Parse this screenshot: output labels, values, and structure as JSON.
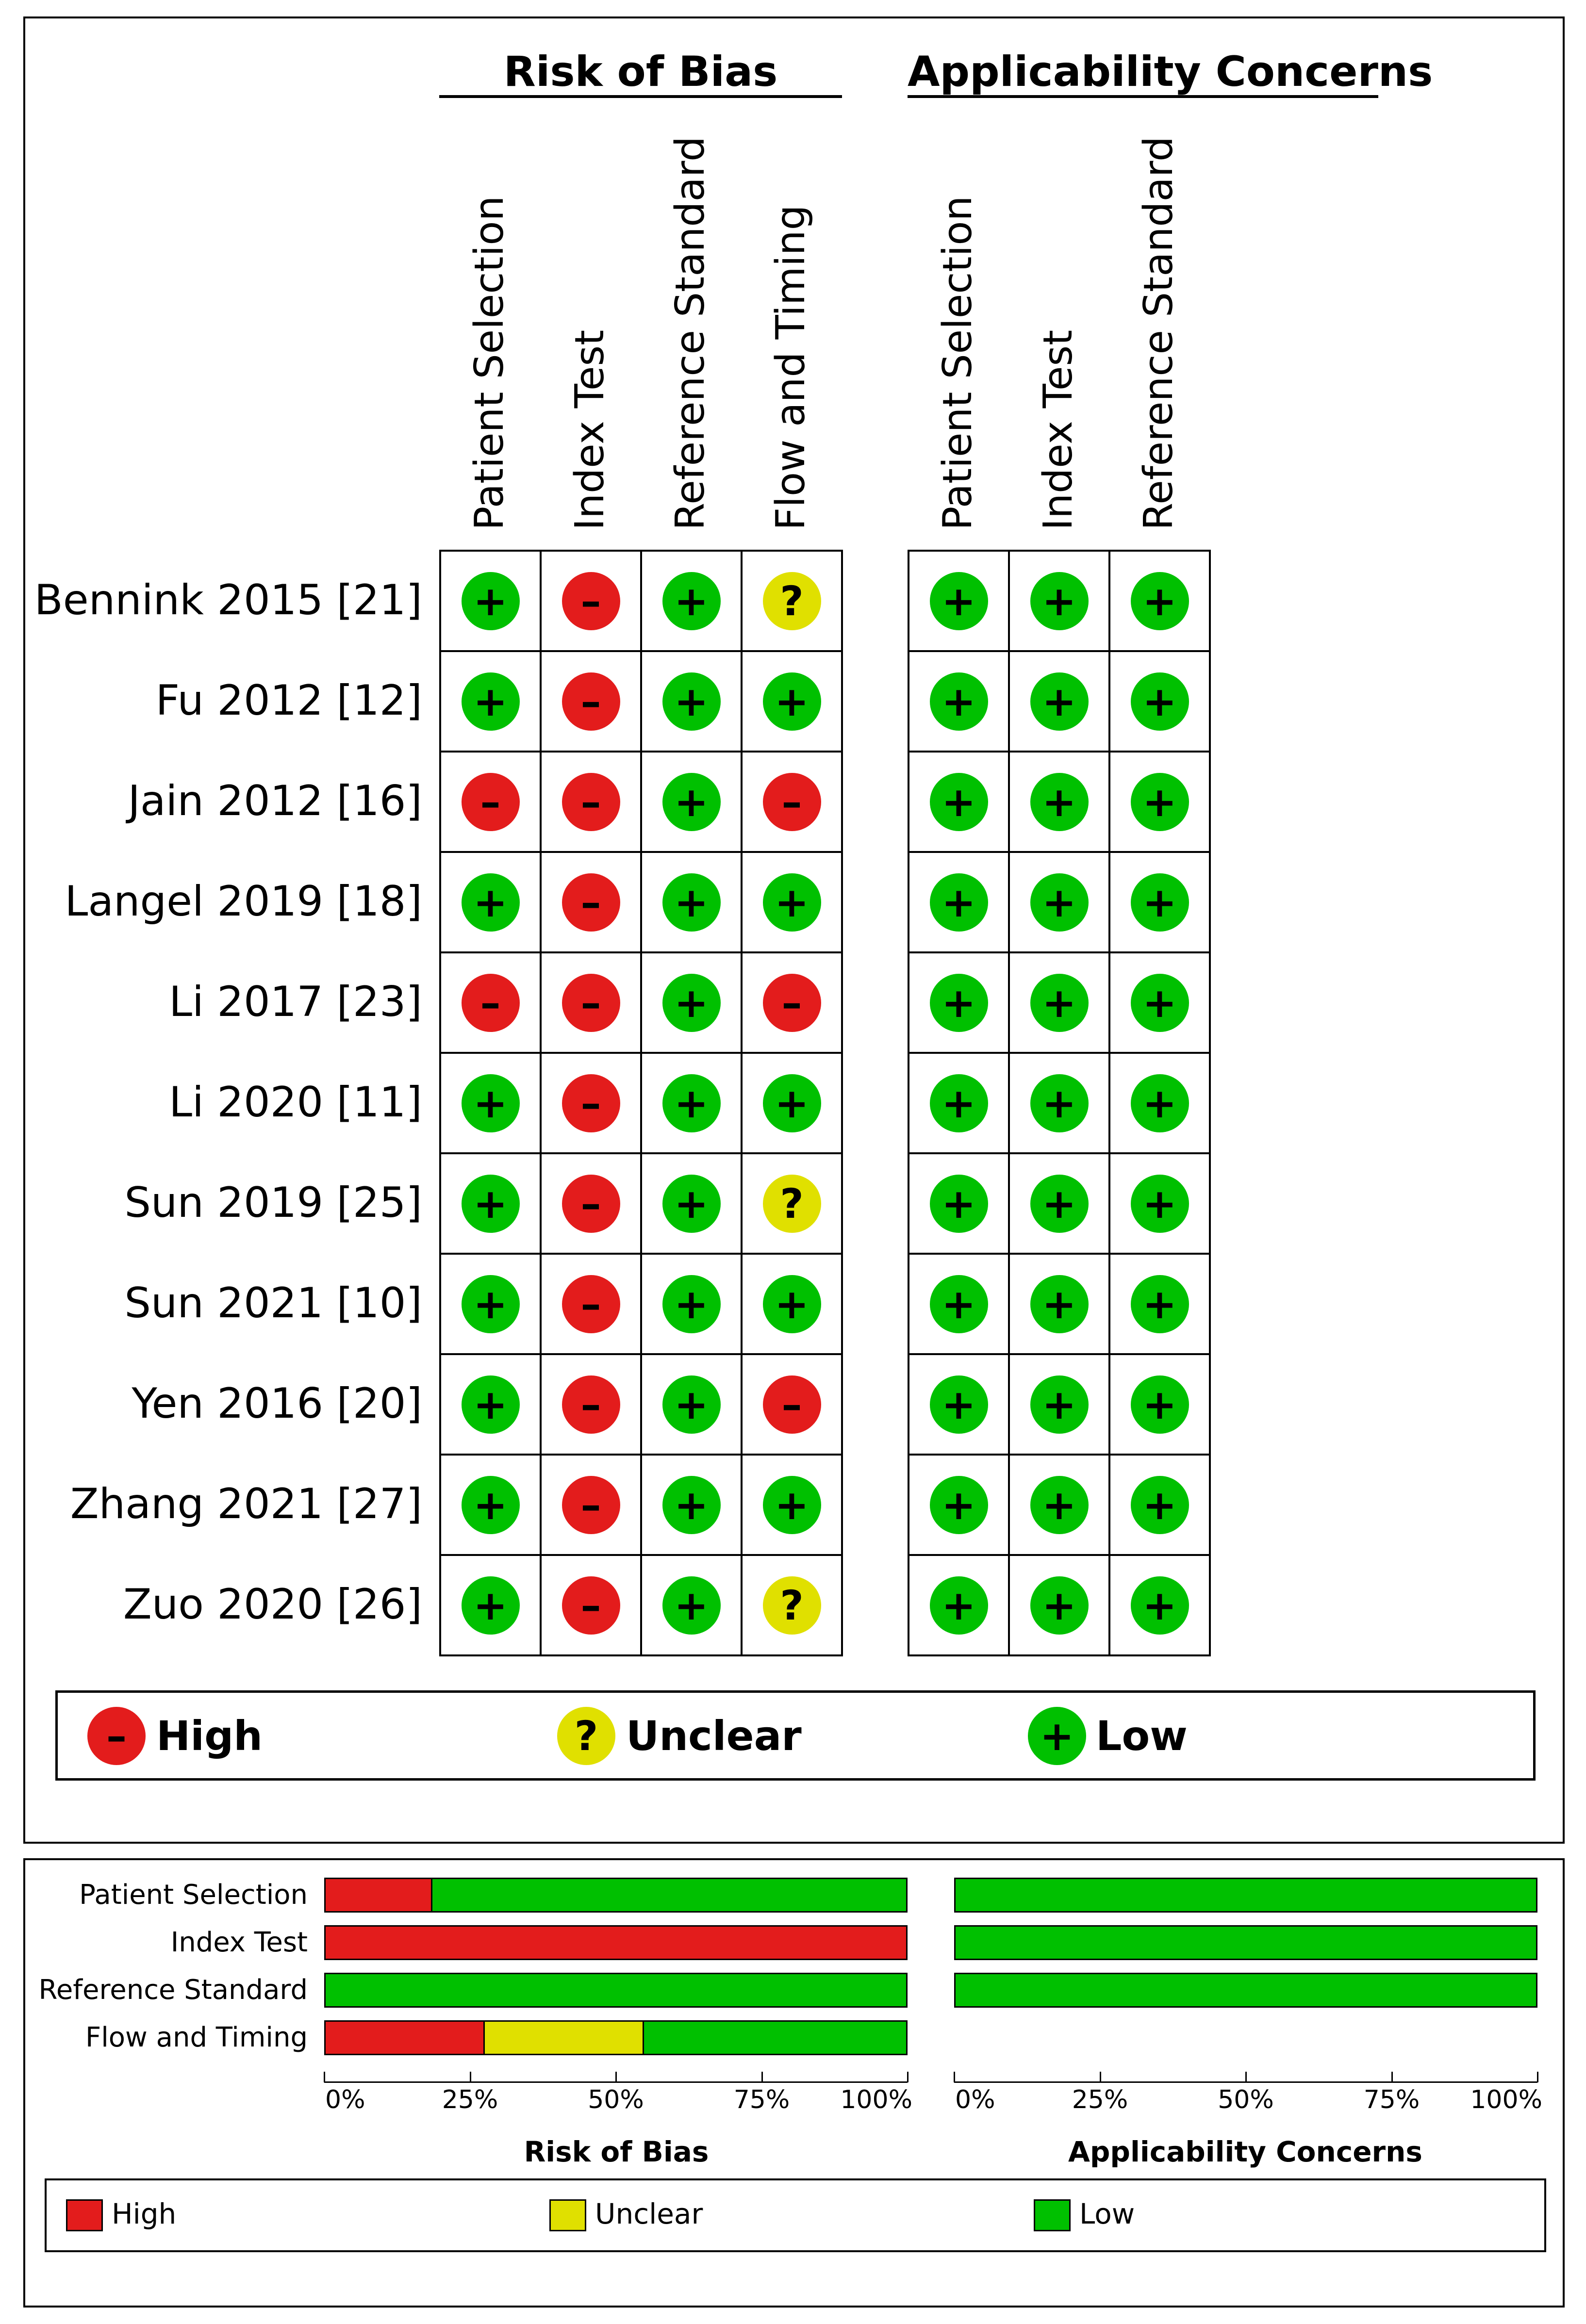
{
  "chart_data": [
    {
      "type": "table",
      "groups": [
        {
          "title": "Risk of Bias",
          "columns": [
            "Patient Selection",
            "Index Test",
            "Reference Standard",
            "Flow and Timing"
          ]
        },
        {
          "title": "Applicability Concerns",
          "columns": [
            "Patient Selection",
            "Index Test",
            "Reference Standard"
          ]
        }
      ],
      "studies": [
        {
          "label": "Bennink 2015 [21]",
          "risk_of_bias": [
            "low",
            "high",
            "low",
            "unclear"
          ],
          "applicability": [
            "low",
            "low",
            "low"
          ]
        },
        {
          "label": "Fu 2012 [12]",
          "risk_of_bias": [
            "low",
            "high",
            "low",
            "low"
          ],
          "applicability": [
            "low",
            "low",
            "low"
          ]
        },
        {
          "label": "Jain 2012 [16]",
          "risk_of_bias": [
            "high",
            "high",
            "low",
            "high"
          ],
          "applicability": [
            "low",
            "low",
            "low"
          ]
        },
        {
          "label": "Langel 2019 [18]",
          "risk_of_bias": [
            "low",
            "high",
            "low",
            "low"
          ],
          "applicability": [
            "low",
            "low",
            "low"
          ]
        },
        {
          "label": "Li 2017 [23]",
          "risk_of_bias": [
            "high",
            "high",
            "low",
            "high"
          ],
          "applicability": [
            "low",
            "low",
            "low"
          ]
        },
        {
          "label": "Li 2020 [11]",
          "risk_of_bias": [
            "low",
            "high",
            "low",
            "low"
          ],
          "applicability": [
            "low",
            "low",
            "low"
          ]
        },
        {
          "label": "Sun 2019 [25]",
          "risk_of_bias": [
            "low",
            "high",
            "low",
            "unclear"
          ],
          "applicability": [
            "low",
            "low",
            "low"
          ]
        },
        {
          "label": "Sun 2021 [10]",
          "risk_of_bias": [
            "low",
            "high",
            "low",
            "low"
          ],
          "applicability": [
            "low",
            "low",
            "low"
          ]
        },
        {
          "label": "Yen 2016 [20]",
          "risk_of_bias": [
            "low",
            "high",
            "low",
            "high"
          ],
          "applicability": [
            "low",
            "low",
            "low"
          ]
        },
        {
          "label": "Zhang 2021 [27]",
          "risk_of_bias": [
            "low",
            "high",
            "low",
            "low"
          ],
          "applicability": [
            "low",
            "low",
            "low"
          ]
        },
        {
          "label": "Zuo 2020 [26]",
          "risk_of_bias": [
            "low",
            "high",
            "low",
            "unclear"
          ],
          "applicability": [
            "low",
            "low",
            "low"
          ]
        }
      ],
      "legend": [
        {
          "key": "high",
          "label": "High",
          "symbol": "–"
        },
        {
          "key": "unclear",
          "label": "Unclear",
          "symbol": "?"
        },
        {
          "key": "low",
          "label": "Low",
          "symbol": "+"
        }
      ]
    },
    {
      "type": "bar",
      "stacked": true,
      "orientation": "horizontal",
      "categories": [
        "Patient Selection",
        "Index Test",
        "Reference Standard",
        "Flow and Timing"
      ],
      "panels": [
        {
          "title": "Risk of Bias",
          "series": [
            {
              "name": "High",
              "values": [
                18.2,
                100,
                0,
                27.3
              ]
            },
            {
              "name": "Unclear",
              "values": [
                0,
                0,
                0,
                27.3
              ]
            },
            {
              "name": "Low",
              "values": [
                81.8,
                0,
                100,
                45.4
              ]
            }
          ]
        },
        {
          "title": "Applicability Concerns",
          "series": [
            {
              "name": "High",
              "values": [
                0,
                0,
                0
              ]
            },
            {
              "name": "Unclear",
              "values": [
                0,
                0,
                0
              ]
            },
            {
              "name": "Low",
              "values": [
                100,
                100,
                100
              ]
            }
          ]
        }
      ],
      "xlim": [
        0,
        100
      ],
      "xticks": [
        "0%",
        "25%",
        "50%",
        "75%",
        "100%"
      ],
      "legend": [
        "High",
        "Unclear",
        "Low"
      ]
    }
  ],
  "colors": {
    "high": "#e31c1c",
    "unclear": "#e0e000",
    "low": "#00c000"
  }
}
